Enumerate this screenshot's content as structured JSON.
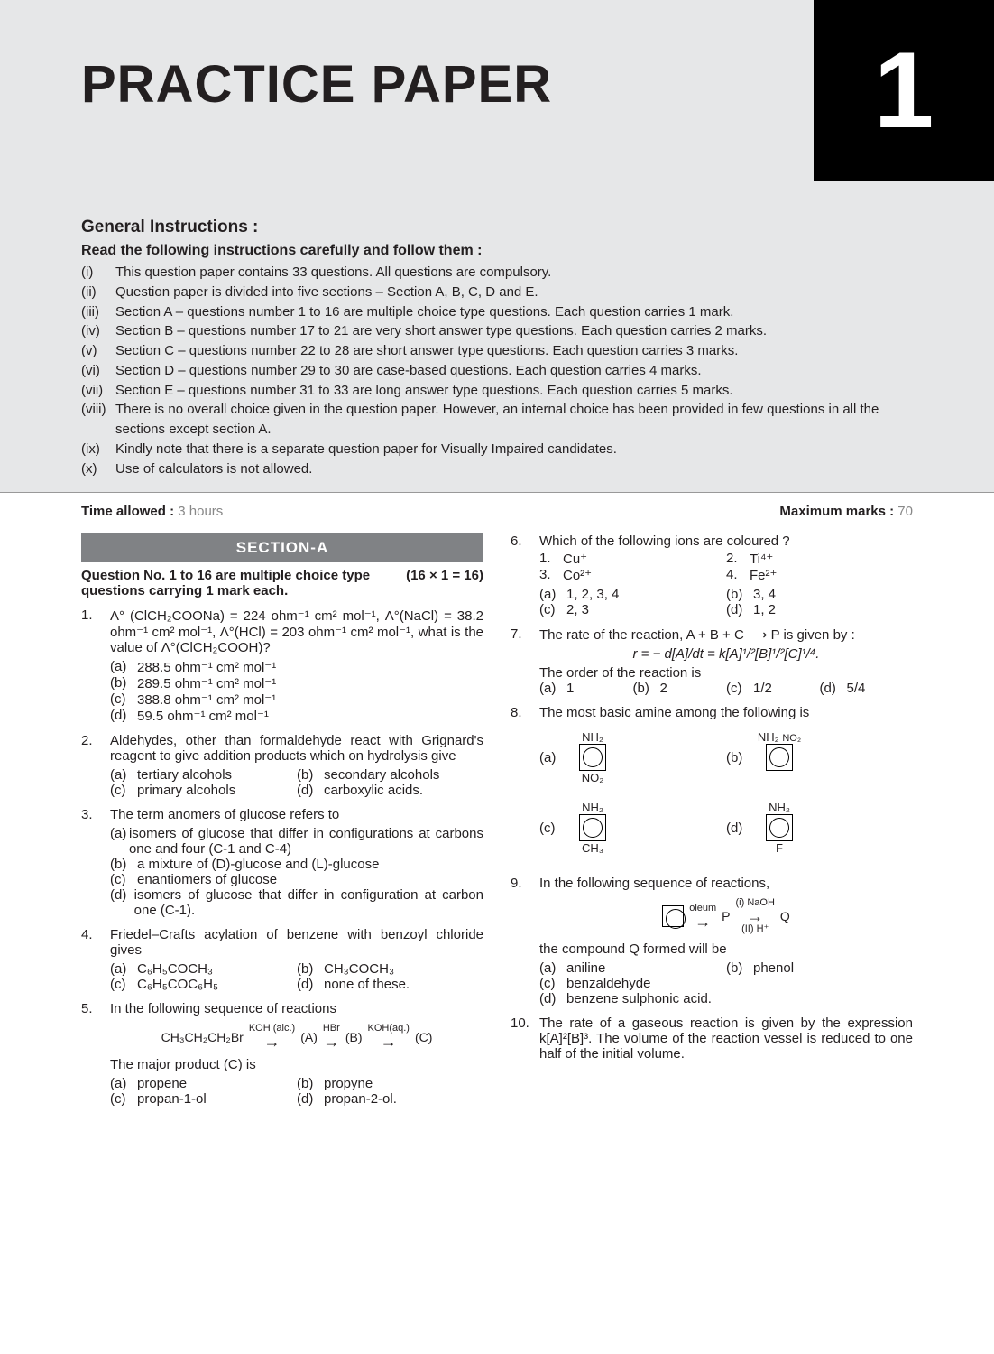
{
  "header": {
    "title": "PRACTICE PAPER",
    "number": "1"
  },
  "instructions": {
    "title": "General Instructions :",
    "subtitle": "Read the following instructions carefully and follow them :",
    "items": [
      {
        "n": "(i)",
        "t": "This question paper contains 33 questions. All questions are compulsory."
      },
      {
        "n": "(ii)",
        "t": "Question paper is divided into five sections – Section A, B, C, D and E."
      },
      {
        "n": "(iii)",
        "t": "Section A – questions number 1 to 16 are multiple choice type questions. Each question carries 1 mark."
      },
      {
        "n": "(iv)",
        "t": "Section B – questions number 17 to 21 are very short answer type questions. Each question carries 2 marks."
      },
      {
        "n": "(v)",
        "t": "Section C – questions number 22 to 28 are short answer type questions. Each question carries 3 marks."
      },
      {
        "n": "(vi)",
        "t": "Section D – questions number 29 to 30 are case-based questions.  Each question carries 4 marks."
      },
      {
        "n": "(vii)",
        "t": "Section E – questions number 31 to 33 are long answer type questions. Each question carries 5 marks."
      },
      {
        "n": "(viii)",
        "t": "There is no overall choice given in the question paper. However, an internal choice has been provided in few questions in all the sections except section A."
      },
      {
        "n": "(ix)",
        "t": "Kindly note that there is a separate question paper for Visually Impaired candidates."
      },
      {
        "n": "(x)",
        "t": "Use of calculators is not allowed."
      }
    ]
  },
  "timeMarks": {
    "timeLabel": "Time allowed :",
    "timeVal": " 3 hours",
    "marksLabel": "Maximum marks :",
    "marksVal": " 70"
  },
  "sectionA": {
    "title": "SECTION-A",
    "note": "Question No. 1 to 16 are multiple choice type questions carrying 1 mark each.",
    "noteMarks": "(16 × 1 = 16)"
  },
  "q1": {
    "n": "1.",
    "stem": "Λ° (ClCH₂COONa) = 224 ohm⁻¹ cm² mol⁻¹, Λ°(NaCl) = 38.2 ohm⁻¹ cm² mol⁻¹, Λ°(HCl) = 203 ohm⁻¹ cm² mol⁻¹, what is the value of Λ°(ClCH₂COOH)?",
    "a": "288.5 ohm⁻¹ cm² mol⁻¹",
    "b": "289.5 ohm⁻¹ cm² mol⁻¹",
    "c": "388.8 ohm⁻¹ cm² mol⁻¹",
    "d": "59.5 ohm⁻¹ cm² mol⁻¹"
  },
  "q2": {
    "n": "2.",
    "stem": "Aldehydes, other than formaldehyde react with Grignard's reagent to give addition products which on hydrolysis give",
    "a": "tertiary alcohols",
    "b": "secondary alcohols",
    "c": "primary alcohols",
    "d": "carboxylic acids."
  },
  "q3": {
    "n": "3.",
    "stem": "The term anomers of glucose refers to",
    "a": "isomers of glucose that differ in configurations at carbons one and four (C-1 and C-4)",
    "b": "a mixture of (D)-glucose and (L)-glucose",
    "c": "enantiomers of glucose",
    "d": "isomers of glucose that differ in configuration at carbon one (C-1)."
  },
  "q4": {
    "n": "4.",
    "stem": "Friedel–Crafts acylation of benzene with benzoyl chloride gives",
    "a": "C₆H₅COCH₃",
    "b": "CH₃COCH₃",
    "c": "C₆H₅COC₆H₅",
    "d": "none of these."
  },
  "q5": {
    "n": "5.",
    "stem": "In the following sequence of reactions",
    "rxn": "CH₃CH₂CH₂Br",
    "r1top": "KOH (alc.)",
    "r1": "(A)",
    "r2top": "HBr",
    "r2": "(B)",
    "r3top": "KOH(aq.)",
    "r3": "(C)",
    "post": "The major product (C) is",
    "a": "propene",
    "b": "propyne",
    "c": "propan-1-ol",
    "d": "propan-2-ol."
  },
  "q6": {
    "n": "6.",
    "stem": "Which of the following ions are coloured ?",
    "s1": "Cu⁺",
    "s2": "Ti⁴⁺",
    "s3": "Co²⁺",
    "s4": "Fe²⁺",
    "a": "1, 2, 3, 4",
    "b": "3, 4",
    "c": "2, 3",
    "d": "1, 2"
  },
  "q7": {
    "n": "7.",
    "stem": "The rate of the reaction, A + B + C ⟶ P is given by :",
    "formula": "r = − d[A]/dt = k[A]¹/²[B]¹/²[C]¹/⁴.",
    "post": "The order of the reaction is",
    "a": "1",
    "b": "2",
    "c": "1/2",
    "d": "5/4"
  },
  "q8": {
    "n": "8.",
    "stem": "The most basic amine among the following is",
    "sa_top": "NH₂",
    "sa_bot": "NO₂",
    "sb_top": "NH₂",
    "sb_side": "NO₂",
    "sc_top": "NH₂",
    "sc_bot": "CH₃",
    "sd_top": "NH₂",
    "sd_bot": "F"
  },
  "q9": {
    "n": "9.",
    "stem": "In the following sequence of reactions,",
    "r1": "oleum",
    "mid": "P",
    "r2t": "(i) NaOH",
    "r2b": "(II) H⁺",
    "end": "Q",
    "post": "the compound Q formed will be",
    "a": "aniline",
    "b": "phenol",
    "c": "benzaldehyde",
    "d": "benzene sulphonic acid."
  },
  "q10": {
    "n": "10.",
    "stem": "The rate of a gaseous reaction is given by the expression k[A]²[B]³. The volume of the reaction vessel is reduced to one half of the initial volume."
  },
  "labels": {
    "la": "(a)",
    "lb": "(b)",
    "lc": "(c)",
    "ld": "(d)",
    "l1": "1.",
    "l2": "2.",
    "l3": "3.",
    "l4": "4."
  }
}
